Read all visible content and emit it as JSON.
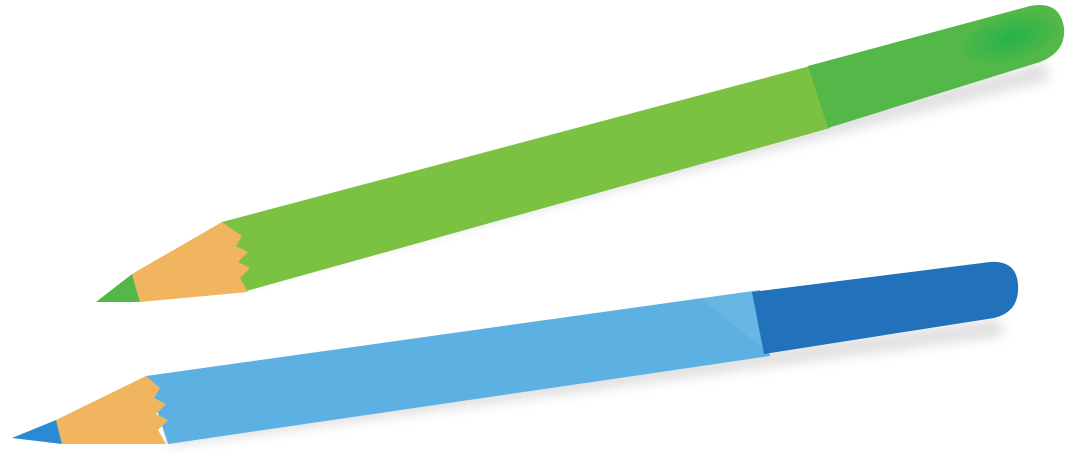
{
  "scene": {
    "background_color": "#ffffff",
    "pencils": [
      {
        "color_name": "green",
        "body_color": "#7bc142",
        "cap_color": "#54b848",
        "cap_highlight_color": "#1fb24a",
        "tip_color": "#54b848",
        "wood_color": "#f2b55f",
        "icon": "green-pencil-icon"
      },
      {
        "color_name": "blue",
        "body_color": "#5cb0e2",
        "cap_color": "#2272bb",
        "cap_highlight_color": "#1f69b6",
        "tip_color": "#2a8ad3",
        "wood_color": "#f2b55f",
        "icon": "blue-pencil-icon"
      }
    ]
  }
}
